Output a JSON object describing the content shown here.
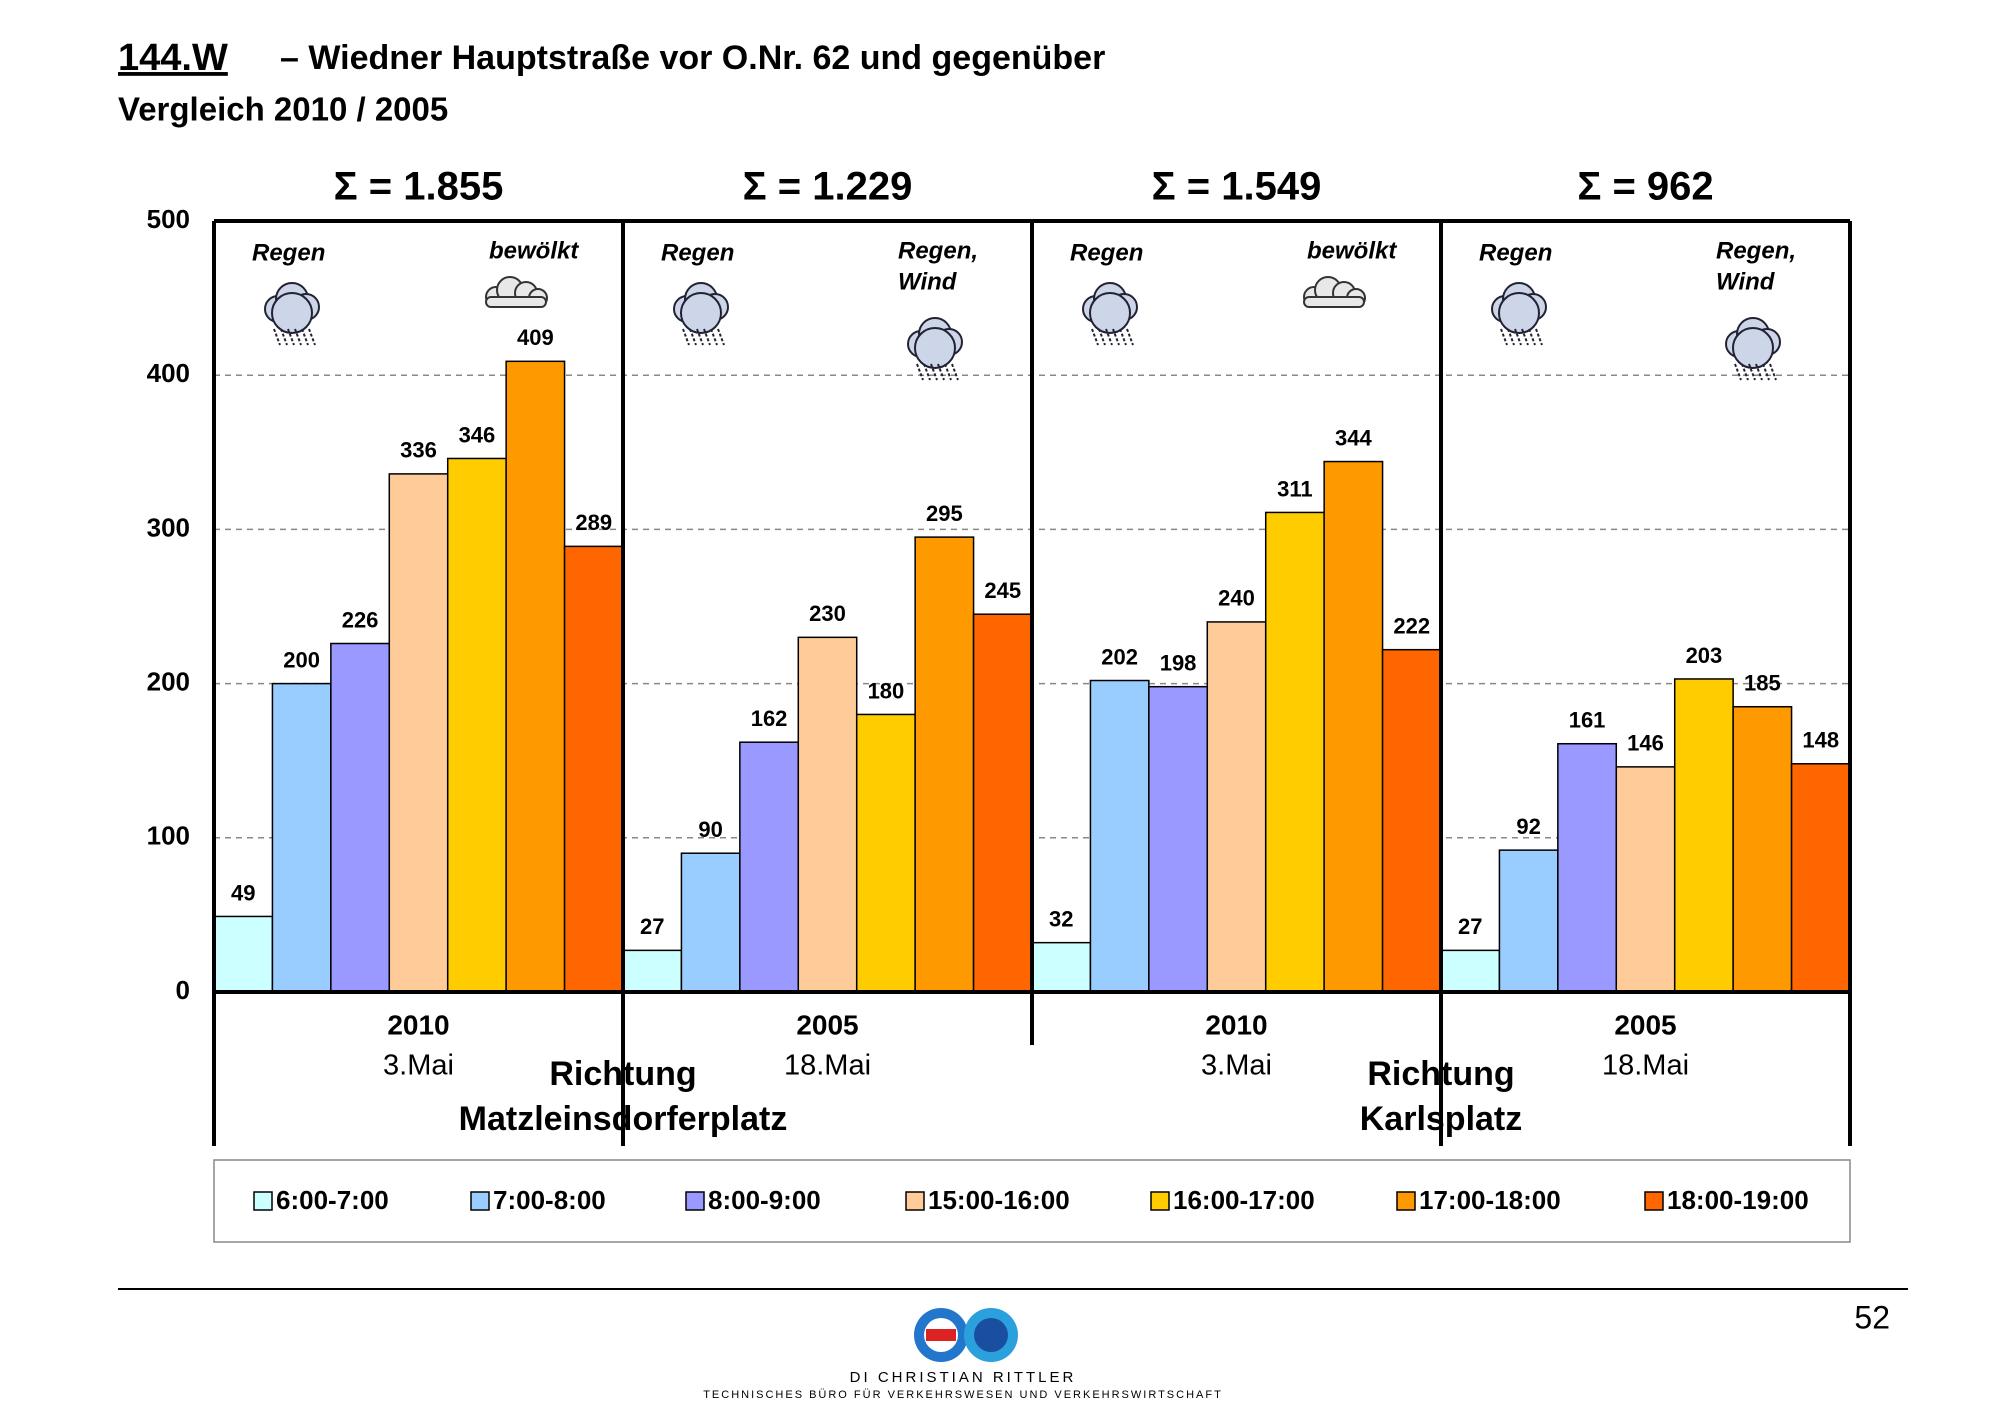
{
  "chart_data": {
    "type": "bar",
    "title_code": "144.W",
    "title": "– Wiedner Hauptstraße vor O.Nr. 62 und gegenüber",
    "subtitle": "Vergleich 2010 / 2005",
    "categories": [
      "2010",
      "2005",
      "2010",
      "2005"
    ],
    "dates": [
      "3.Mai",
      "18.Mai",
      "3.Mai",
      "18.Mai"
    ],
    "totals": [
      "Σ = 1.855",
      "Σ = 1.229",
      "Σ = 1.549",
      "Σ = 962"
    ],
    "weather_left": [
      "Regen",
      "Regen",
      "Regen",
      "Regen"
    ],
    "weather_right": [
      [
        "bewölkt"
      ],
      [
        "Regen,",
        "Wind"
      ],
      [
        "bewölkt"
      ],
      [
        "Regen,",
        "Wind"
      ]
    ],
    "directions": [
      [
        "Richtung",
        "Matzleinsdorferplatz"
      ],
      [
        "Richtung",
        "Karlsplatz"
      ]
    ],
    "series": [
      {
        "name": "6:00-7:00",
        "color": "#ccffff",
        "values": [
          49,
          27,
          32,
          27
        ]
      },
      {
        "name": "7:00-8:00",
        "color": "#99ccff",
        "values": [
          200,
          90,
          202,
          92
        ]
      },
      {
        "name": "8:00-9:00",
        "color": "#9999ff",
        "values": [
          226,
          162,
          198,
          161
        ]
      },
      {
        "name": "15:00-16:00",
        "color": "#ffcc99",
        "values": [
          336,
          230,
          240,
          146
        ]
      },
      {
        "name": "16:00-17:00",
        "color": "#ffcc00",
        "values": [
          346,
          180,
          311,
          203
        ]
      },
      {
        "name": "17:00-18:00",
        "color": "#ff9900",
        "values": [
          409,
          295,
          344,
          185
        ]
      },
      {
        "name": "18:00-19:00",
        "color": "#ff6600",
        "values": [
          289,
          245,
          222,
          148
        ]
      }
    ],
    "ylim": [
      0,
      500
    ],
    "yticks": [
      0,
      100,
      200,
      300,
      400,
      500
    ],
    "grid": true,
    "page_number": 52,
    "footer_name": "DI Christian Rittler",
    "footer_tagline": "Technisches Büro für Verkehrswesen und Verkehrswirtschaft"
  }
}
